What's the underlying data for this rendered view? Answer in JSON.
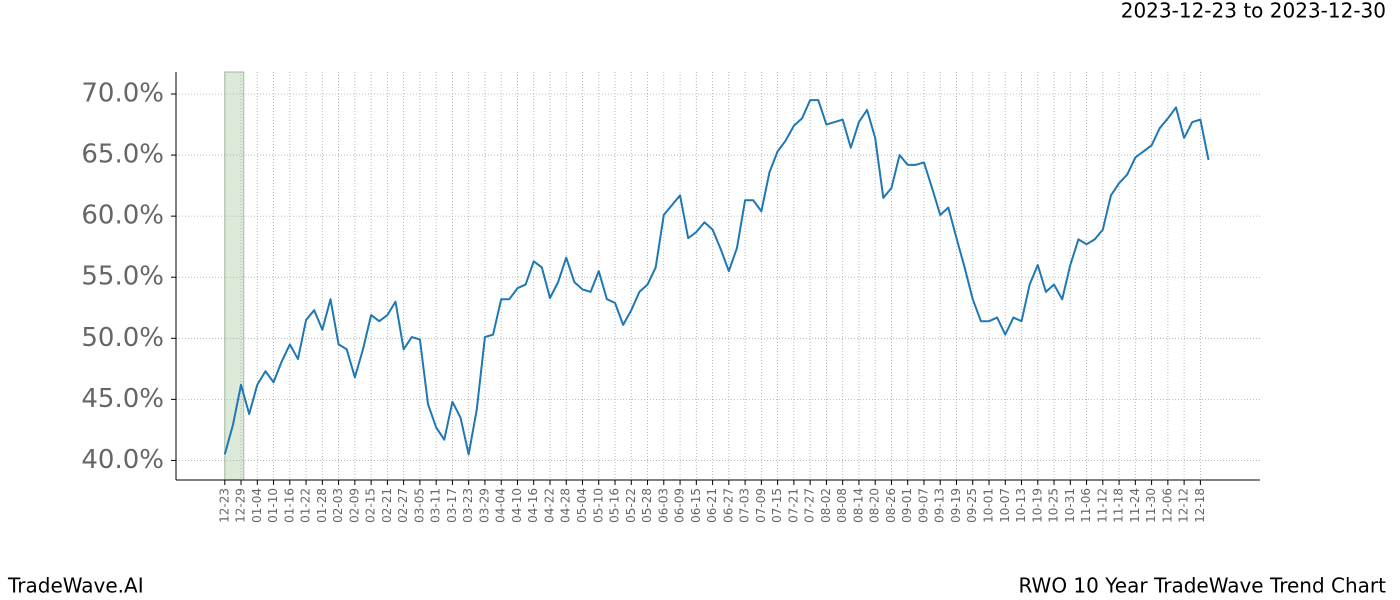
{
  "chart_data": {
    "type": "line",
    "title": "2023-12-23 to 2023-12-30",
    "footer_left": "TradeWave.AI",
    "footer_right": "RWO 10 Year TradeWave Trend Chart",
    "highlight": [
      "12-23",
      "12-30"
    ],
    "highlight_color": "#dbead9",
    "grid": true,
    "x": [
      "12-23",
      "12-26",
      "12-29",
      "01-01",
      "01-04",
      "01-07",
      "01-10",
      "01-13",
      "01-16",
      "01-19",
      "01-22",
      "01-25",
      "01-28",
      "01-31",
      "02-03",
      "02-06",
      "02-09",
      "02-12",
      "02-15",
      "02-18",
      "02-21",
      "02-24",
      "02-27",
      "03-02",
      "03-05",
      "03-08",
      "03-11",
      "03-14",
      "03-17",
      "03-20",
      "03-23",
      "03-26",
      "03-29",
      "04-01",
      "04-04",
      "04-07",
      "04-10",
      "04-13",
      "04-16",
      "04-19",
      "04-22",
      "04-25",
      "04-28",
      "05-01",
      "05-04",
      "05-07",
      "05-10",
      "05-13",
      "05-16",
      "05-19",
      "05-22",
      "05-25",
      "05-28",
      "05-31",
      "06-03",
      "06-06",
      "06-09",
      "06-12",
      "06-15",
      "06-18",
      "06-21",
      "06-24",
      "06-27",
      "06-30",
      "07-03",
      "07-06",
      "07-09",
      "07-12",
      "07-15",
      "07-18",
      "07-21",
      "07-24",
      "07-27",
      "07-30",
      "08-02",
      "08-05",
      "08-08",
      "08-11",
      "08-14",
      "08-17",
      "08-20",
      "08-23",
      "08-26",
      "08-29",
      "09-01",
      "09-04",
      "09-07",
      "09-10",
      "09-13",
      "09-16",
      "09-19",
      "09-22",
      "09-25",
      "09-28",
      "10-01",
      "10-04",
      "10-07",
      "10-10",
      "10-13",
      "10-16",
      "10-19",
      "10-22",
      "10-25",
      "10-28",
      "10-31",
      "11-03",
      "11-06",
      "11-09",
      "11-12",
      "11-15",
      "11-18",
      "11-21",
      "11-24",
      "11-27",
      "11-30",
      "12-03",
      "12-06",
      "12-09",
      "12-12",
      "12-15",
      "12-18",
      "12-21"
    ],
    "series": [
      {
        "name": "RWO",
        "color": "#1f77b4",
        "values": [
          40.5,
          42.9,
          46.2,
          43.8,
          46.2,
          47.3,
          46.4,
          48.1,
          49.5,
          48.3,
          51.5,
          52.3,
          50.7,
          53.2,
          49.5,
          49.1,
          46.8,
          49.1,
          51.9,
          51.4,
          51.9,
          53.0,
          49.1,
          50.1,
          49.9,
          44.6,
          42.7,
          41.7,
          44.8,
          43.5,
          40.5,
          44.2,
          50.1,
          50.3,
          53.2,
          53.2,
          54.1,
          54.4,
          56.3,
          55.8,
          53.3,
          54.6,
          56.6,
          54.6,
          54.0,
          53.8,
          55.5,
          53.2,
          52.9,
          51.1,
          52.3,
          53.8,
          54.4,
          55.8,
          60.1,
          60.9,
          61.7,
          58.2,
          58.7,
          59.5,
          58.9,
          57.3,
          55.5,
          57.4,
          61.3,
          61.3,
          60.4,
          63.6,
          65.3,
          66.2,
          67.4,
          68.0,
          69.5,
          69.5,
          67.5,
          67.7,
          67.9,
          65.6,
          67.7,
          68.7,
          66.4,
          61.5,
          62.3,
          65.0,
          64.2,
          64.2,
          64.4,
          62.3,
          60.1,
          60.7,
          58.2,
          55.8,
          53.2,
          51.4,
          51.4,
          51.7,
          50.3,
          51.7,
          51.4,
          54.4,
          56.0,
          53.8,
          54.4,
          53.2,
          56.0,
          58.1,
          57.7,
          58.1,
          58.9,
          61.7,
          62.7,
          63.4,
          64.8,
          65.3,
          65.8,
          67.2,
          68.0,
          68.9,
          66.4,
          67.7,
          67.9,
          64.6
        ]
      }
    ],
    "xlim": [
      "12-05",
      "01-09"
    ],
    "xticks": [
      "12-23",
      "12-29",
      "01-04",
      "01-10",
      "01-16",
      "01-22",
      "01-28",
      "02-03",
      "02-09",
      "02-15",
      "02-21",
      "02-27",
      "03-05",
      "03-11",
      "03-17",
      "03-23",
      "03-29",
      "04-04",
      "04-10",
      "04-16",
      "04-22",
      "04-28",
      "05-04",
      "05-10",
      "05-16",
      "05-22",
      "05-28",
      "06-03",
      "06-09",
      "06-15",
      "06-21",
      "06-27",
      "07-03",
      "07-09",
      "07-15",
      "07-21",
      "07-27",
      "08-02",
      "08-08",
      "08-14",
      "08-20",
      "08-26",
      "09-01",
      "09-07",
      "09-13",
      "09-19",
      "09-25",
      "10-01",
      "10-07",
      "10-13",
      "10-19",
      "10-25",
      "10-31",
      "11-06",
      "11-12",
      "11-18",
      "11-24",
      "11-30",
      "12-06",
      "12-12",
      "12-18"
    ],
    "ylim": [
      38.4,
      71.8
    ],
    "yticks": [
      {
        "value": 40,
        "label": "40.0%"
      },
      {
        "value": 45,
        "label": "45.0%"
      },
      {
        "value": 50,
        "label": "50.0%"
      },
      {
        "value": 55,
        "label": "55.0%"
      },
      {
        "value": 60,
        "label": "60.0%"
      },
      {
        "value": 65,
        "label": "65.0%"
      },
      {
        "value": 70,
        "label": "70.0%"
      }
    ]
  }
}
